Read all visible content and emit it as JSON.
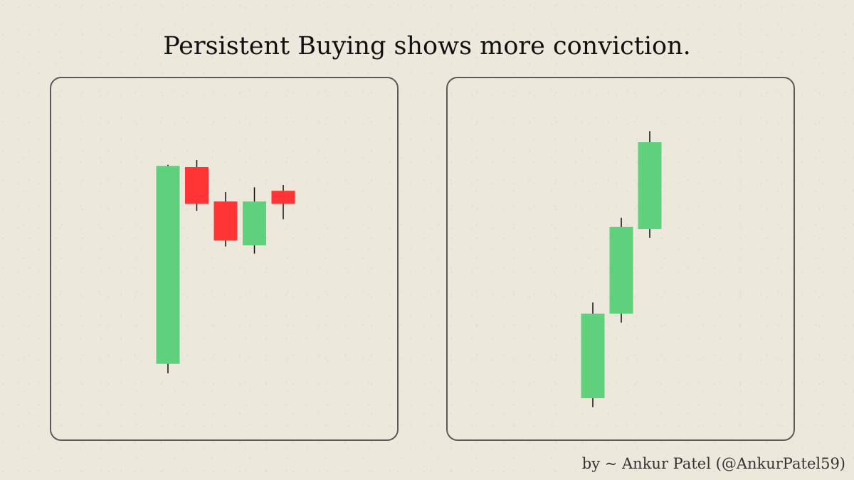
{
  "title": "Persistent Buying shows more conviction.",
  "credit": "by ~ Ankur Patel (@AnkurPatel59)",
  "colors": {
    "bullish": "#5fd07c",
    "bearish": "#ff3535",
    "wick": "#111111"
  },
  "chart_data": [
    {
      "type": "candlestick",
      "title": "",
      "xlabel": "",
      "ylabel": "",
      "ylim": [
        0,
        100
      ],
      "grid": false,
      "candles": [
        {
          "open": 5.5,
          "high": 89.5,
          "low": 1.5,
          "close": 89,
          "direction": "up"
        },
        {
          "open": 88.5,
          "high": 91.5,
          "low": 70,
          "close": 73,
          "direction": "down"
        },
        {
          "open": 74,
          "high": 78,
          "low": 55,
          "close": 57.5,
          "direction": "down"
        },
        {
          "open": 55.5,
          "high": 80,
          "low": 52,
          "close": 74,
          "direction": "up"
        },
        {
          "open": 78.5,
          "high": 81,
          "low": 66.5,
          "close": 73,
          "direction": "down"
        }
      ]
    },
    {
      "type": "candlestick",
      "title": "",
      "xlabel": "",
      "ylabel": "",
      "ylim": [
        0,
        100
      ],
      "grid": false,
      "candles": [
        {
          "open": 14,
          "high": 57,
          "low": 10,
          "close": 52,
          "direction": "up"
        },
        {
          "open": 52,
          "high": 95,
          "low": 48,
          "close": 91,
          "direction": "up"
        },
        {
          "open": 90,
          "high": 134,
          "low": 86,
          "close": 129,
          "direction": "up"
        }
      ]
    }
  ]
}
